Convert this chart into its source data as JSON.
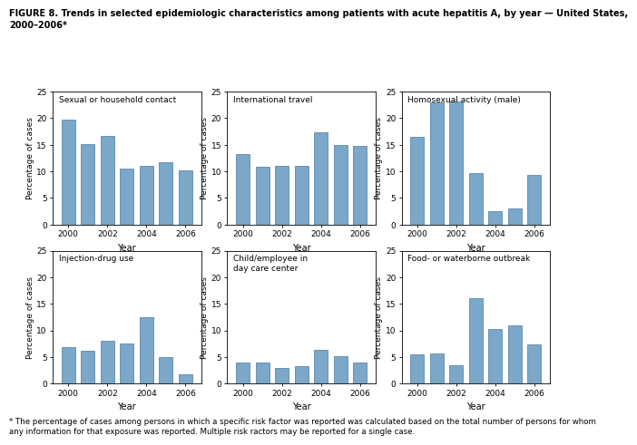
{
  "title": "FIGURE 8. Trends in selected epidemiologic characteristics among patients with acute hepatitis A, by year — United States,\n2000–2006*",
  "footnote": "* The percentage of cases among persons in which a specific risk factor was reported was calculated based on the total number of persons for whom\nany information for that exposure was reported. Multiple risk ractors may be reported for a single case.",
  "years": [
    2000,
    2001,
    2002,
    2003,
    2004,
    2005,
    2006
  ],
  "bar_color": "#7ba7c9",
  "bar_edgecolor": "#4a7aa0",
  "subplots": [
    {
      "title": "Sexual or household contact",
      "values": [
        19.7,
        15.2,
        16.7,
        10.6,
        11.0,
        11.7,
        10.2
      ]
    },
    {
      "title": "International travel",
      "values": [
        13.2,
        10.8,
        11.0,
        11.0,
        17.4,
        15.0,
        14.8
      ]
    },
    {
      "title": "Homosexual activity (male)",
      "values": [
        16.5,
        23.0,
        23.2,
        9.6,
        2.5,
        3.0,
        9.3
      ]
    },
    {
      "title": "Injection-drug use",
      "values": [
        6.9,
        6.1,
        8.1,
        7.6,
        12.5,
        5.0,
        1.8
      ]
    },
    {
      "title": "Child/employee in\nday care center",
      "values": [
        4.0,
        4.0,
        3.0,
        3.3,
        6.3,
        5.2,
        4.0
      ]
    },
    {
      "title": "Food- or waterborne outbreak",
      "values": [
        5.5,
        5.6,
        3.4,
        16.0,
        10.3,
        11.0,
        7.3
      ]
    }
  ],
  "ylabel": "Percentage of cases",
  "xlabel": "Year",
  "ylim": [
    0,
    25
  ],
  "yticks": [
    0,
    5,
    10,
    15,
    20,
    25
  ],
  "xticks": [
    2000,
    2002,
    2004,
    2006
  ]
}
